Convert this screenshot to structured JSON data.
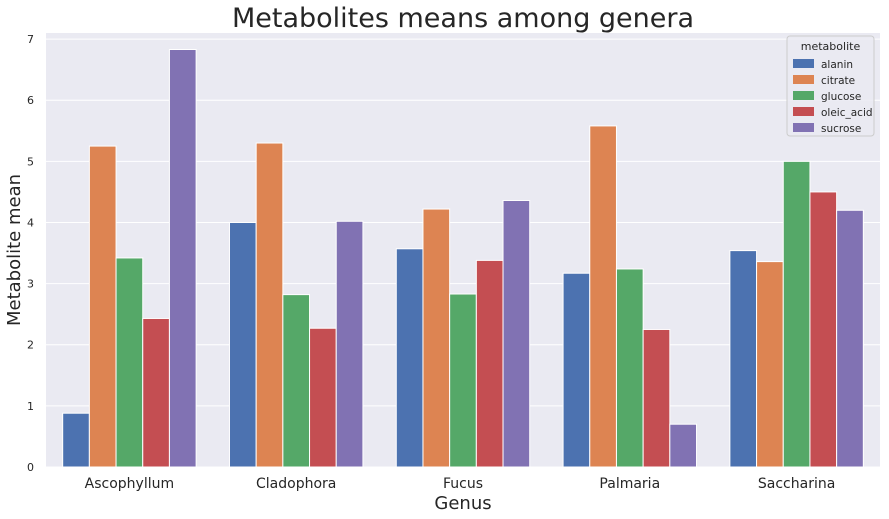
{
  "chart_data": {
    "type": "bar",
    "title": "Metabolites means among genera",
    "xlabel": "Genus",
    "ylabel": "Metabolite mean",
    "ylim": [
      0,
      7.1
    ],
    "yticks": [
      0,
      1,
      2,
      3,
      4,
      5,
      6,
      7
    ],
    "grid": true,
    "categories": [
      "Ascophyllum",
      "Cladophora",
      "Fucus",
      "Palmaria",
      "Saccharina"
    ],
    "legend": {
      "title": "metabolite",
      "placement": "top-right"
    },
    "series": [
      {
        "name": "alanin",
        "color": "#4c72b0",
        "values": [
          0.88,
          4.0,
          3.57,
          3.17,
          3.54
        ]
      },
      {
        "name": "citrate",
        "color": "#dd8452",
        "values": [
          5.25,
          5.3,
          4.22,
          5.58,
          3.36
        ]
      },
      {
        "name": "glucose",
        "color": "#55a868",
        "values": [
          3.42,
          2.82,
          2.83,
          3.24,
          5.0
        ]
      },
      {
        "name": "oleic_acid",
        "color": "#c44e52",
        "values": [
          2.43,
          2.27,
          3.38,
          2.25,
          4.5
        ]
      },
      {
        "name": "sucrose",
        "color": "#8172b3",
        "values": [
          6.83,
          4.02,
          4.36,
          0.7,
          4.2
        ]
      }
    ]
  },
  "colors": {
    "plot_background": "#eaeaf2",
    "grid": "#ffffff",
    "text": "#262626"
  }
}
